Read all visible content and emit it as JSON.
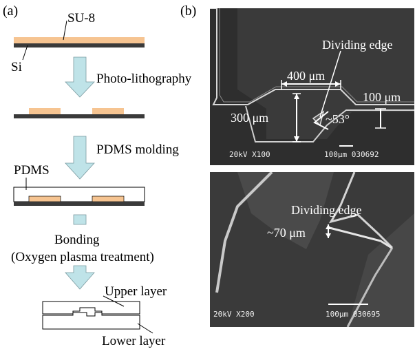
{
  "panel_a": {
    "label": "(a)",
    "materials": {
      "su8": "SU-8",
      "si": "Si",
      "pdms": "PDMS"
    },
    "steps": {
      "photolithography": "Photo-lithography",
      "pdms_molding": "PDMS molding",
      "bonding": "Bonding",
      "bonding_detail": "(Oxygen plasma treatment)"
    },
    "layers": {
      "upper": "Upper layer",
      "lower": "Lower layer"
    },
    "colors": {
      "su8": "#f6c491",
      "substrate": "#3a3a3a",
      "arrow": "#bfe3e8"
    }
  },
  "panel_b": {
    "label": "(b)",
    "top_image": {
      "dividing_edge": "Dividing edge",
      "width_label": "400 μm",
      "height_label": "300 μm",
      "outlet_label": "100 μm",
      "angle_label": "~53°",
      "info_left": "20kV  X100",
      "info_right": "100μm  030692"
    },
    "bottom_image": {
      "dividing_edge": "Dividing edge",
      "thickness_label": "~70 μm",
      "info_left": "20kV  X200",
      "info_right": "100μm  030695"
    }
  }
}
